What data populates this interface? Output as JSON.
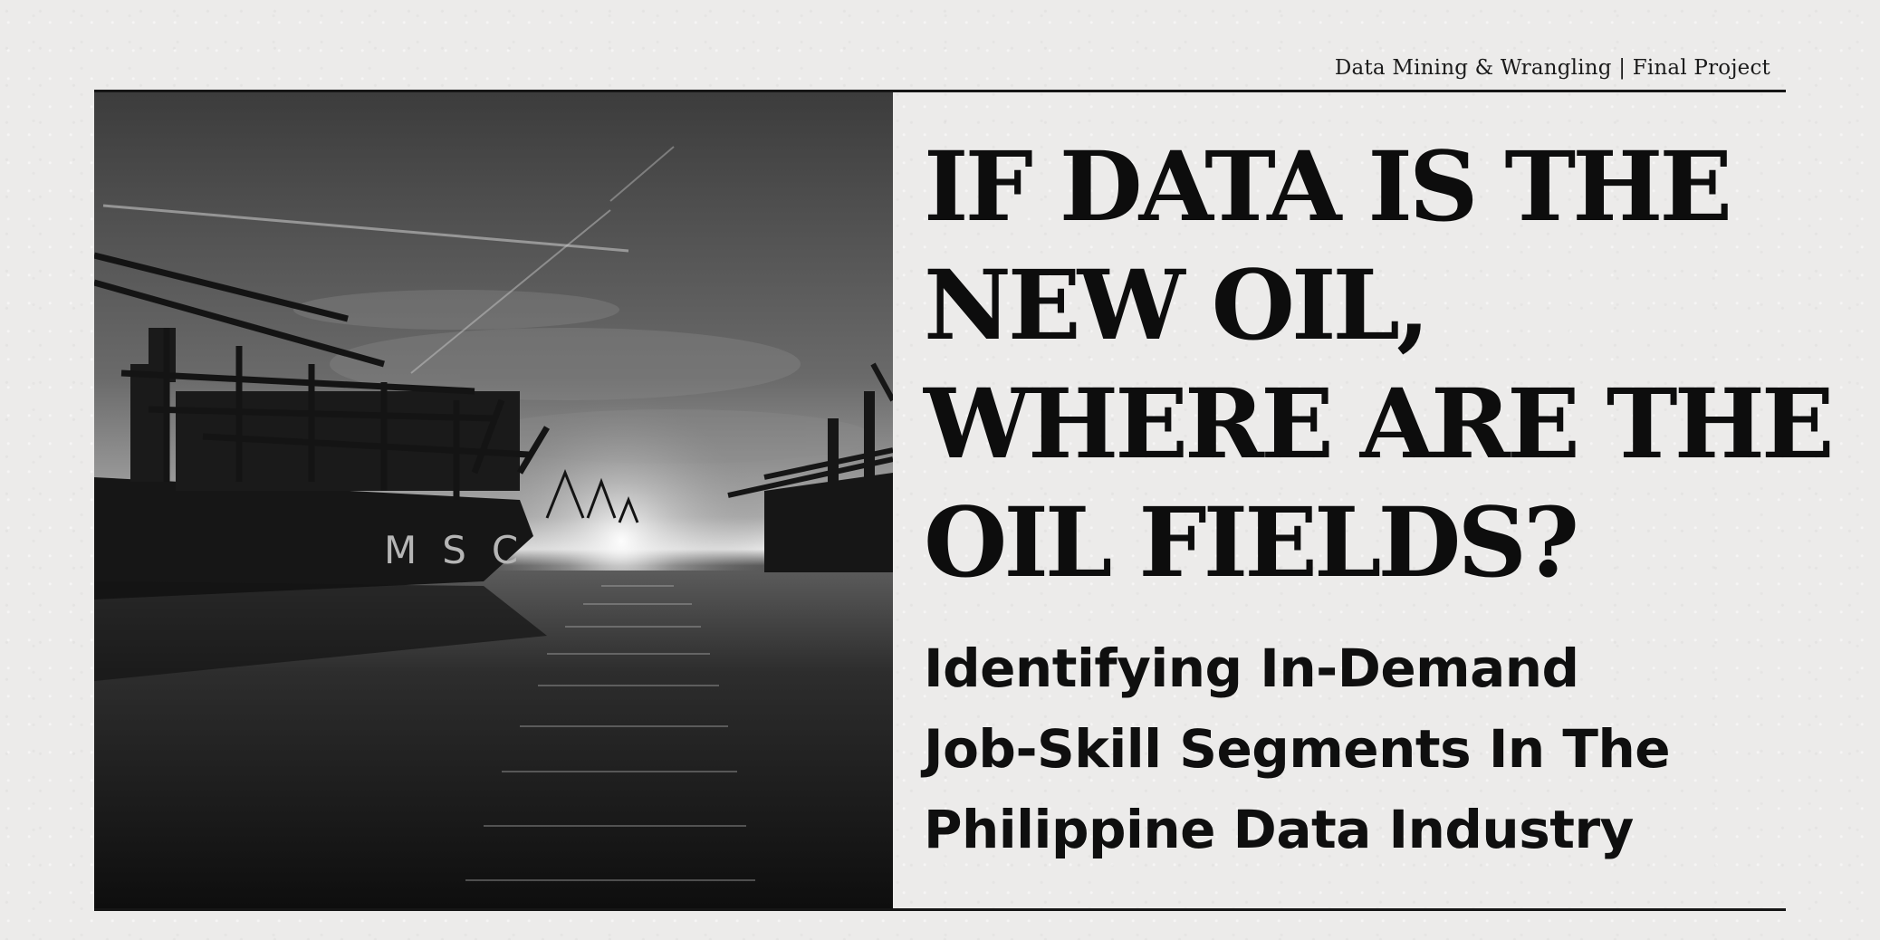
{
  "header": {
    "course_note": "Data Mining & Wrangling | Final Project"
  },
  "hero_image": {
    "icon": "harbor-cranes-photo",
    "ship_lettering": "MSC"
  },
  "title": {
    "lines": [
      "IF DATA IS THE",
      "NEW OIL,",
      "WHERE ARE THE",
      "OIL FIELDS?"
    ]
  },
  "subtitle": {
    "lines": [
      "Identifying In-Demand",
      "Job-Skill Segments In The",
      "Philippine Data Industry"
    ]
  },
  "colors": {
    "background": "#ecebea",
    "text": "#0d0d0d",
    "rule": "#161616"
  }
}
